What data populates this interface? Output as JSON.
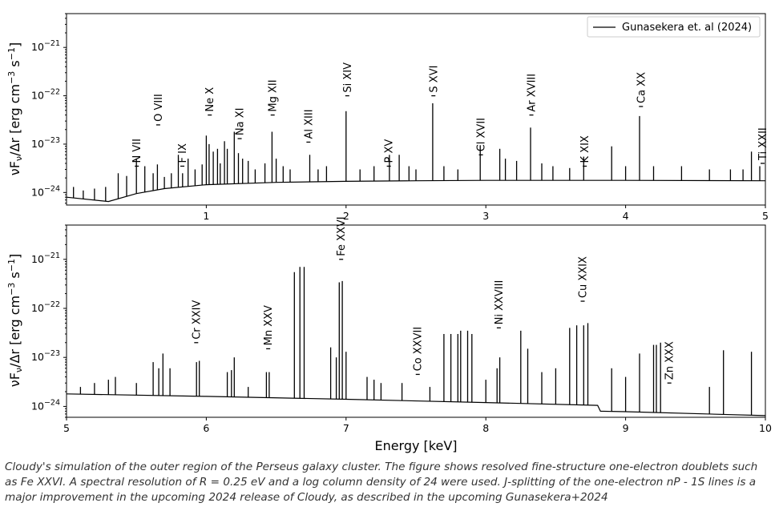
{
  "caption": "Cloudy's simulation of the outer region of the Perseus galaxy cluster. The figure shows resolved fine-structure one-electron doublets such as Fe XXVI. A spectral resolution of R = 0.25 eV and a log column density of 24 were used. J-splitting of the one-electron nP - 1S lines is a major improvement in the upcoming 2024 release of Cloudy, as described in the upcoming Gunasekera+2024",
  "chart_data": [
    {
      "type": "line",
      "panel": "top",
      "xlabel": "",
      "ylabel": "νF_ν/Δr [erg cm^-3 s^-1]",
      "ylabel_main": "νF",
      "ylabel_sub": "ν",
      "ylabel_rest": "/Δr [erg cm",
      "ylabel_exp": "−3",
      "ylabel_s": " s",
      "ylabel_exp2": "−1",
      "ylabel_close": "]",
      "yscale": "log",
      "xlim": [
        0.0,
        5.0
      ],
      "ylim": [
        5.5e-25,
        5e-21
      ],
      "xticks": [
        1,
        2,
        3,
        4,
        5
      ],
      "ytick_exponents": [
        -24,
        -23,
        -22,
        -21
      ],
      "ytick_base": "10",
      "legend": {
        "label": "Gunasekera et. al (2024)",
        "placement": "top-right"
      },
      "continuum": [
        [
          0.0,
          8e-25
        ],
        [
          0.3,
          6.5e-25
        ],
        [
          0.5,
          9.5e-25
        ],
        [
          0.7,
          1.2e-24
        ],
        [
          1.0,
          1.45e-24
        ],
        [
          1.5,
          1.62e-24
        ],
        [
          2.0,
          1.7e-24
        ],
        [
          2.5,
          1.75e-24
        ],
        [
          3.0,
          1.78e-24
        ],
        [
          4.0,
          1.78e-24
        ],
        [
          5.0,
          1.75e-24
        ]
      ],
      "lines": [
        [
          0.05,
          1.3e-24
        ],
        [
          0.12,
          1.1e-24
        ],
        [
          0.2,
          1.2e-24
        ],
        [
          0.28,
          1.3e-24
        ],
        [
          0.37,
          2.5e-24
        ],
        [
          0.43,
          2.2e-24
        ],
        [
          0.5,
          5e-24
        ],
        [
          0.56,
          3.5e-24
        ],
        [
          0.62,
          2.5e-24
        ],
        [
          0.65,
          3.8e-24
        ],
        [
          0.7,
          2.1e-24
        ],
        [
          0.75,
          2.5e-24
        ],
        [
          0.8,
          6e-24
        ],
        [
          0.83,
          2.5e-24
        ],
        [
          0.87,
          5e-24
        ],
        [
          0.92,
          3e-24
        ],
        [
          0.97,
          3.8e-24
        ],
        [
          1.0,
          1.5e-23
        ],
        [
          1.02,
          1e-23
        ],
        [
          1.05,
          7e-24
        ],
        [
          1.08,
          8e-24
        ],
        [
          1.1,
          4e-24
        ],
        [
          1.13,
          1.15e-23
        ],
        [
          1.15,
          8e-24
        ],
        [
          1.2,
          1.8e-23
        ],
        [
          1.23,
          6.5e-24
        ],
        [
          1.26,
          5e-24
        ],
        [
          1.3,
          4.5e-24
        ],
        [
          1.35,
          3e-24
        ],
        [
          1.42,
          4e-24
        ],
        [
          1.47,
          1.8e-23
        ],
        [
          1.5,
          5e-24
        ],
        [
          1.55,
          3.5e-24
        ],
        [
          1.6,
          3e-24
        ],
        [
          1.74,
          6e-24
        ],
        [
          1.8,
          3e-24
        ],
        [
          1.86,
          3.5e-24
        ],
        [
          2.0,
          4.8e-23
        ],
        [
          2.1,
          3e-24
        ],
        [
          2.2,
          3.5e-24
        ],
        [
          2.31,
          6e-24
        ],
        [
          2.38,
          6e-24
        ],
        [
          2.45,
          3.5e-24
        ],
        [
          2.5,
          3e-24
        ],
        [
          2.62,
          7e-23
        ],
        [
          2.7,
          3.5e-24
        ],
        [
          2.8,
          3e-24
        ],
        [
          2.96,
          9.5e-24
        ],
        [
          3.1,
          8e-24
        ],
        [
          3.14,
          5e-24
        ],
        [
          3.22,
          4.5e-24
        ],
        [
          3.32,
          2.2e-23
        ],
        [
          3.4,
          4e-24
        ],
        [
          3.48,
          3.5e-24
        ],
        [
          3.6,
          3.2e-24
        ],
        [
          3.7,
          5.5e-24
        ],
        [
          3.9,
          9e-24
        ],
        [
          4.0,
          3.5e-24
        ],
        [
          4.1,
          3.8e-23
        ],
        [
          4.2,
          3.5e-24
        ],
        [
          4.4,
          3.5e-24
        ],
        [
          4.6,
          3e-24
        ],
        [
          4.75,
          3e-24
        ],
        [
          4.84,
          3e-24
        ],
        [
          4.9,
          7e-24
        ],
        [
          4.96,
          3.5e-24
        ]
      ],
      "ions": [
        {
          "label": "N VII",
          "x": 0.5,
          "y": 3.5e-24
        },
        {
          "label": "O VIII",
          "x": 0.653,
          "y": 2.5e-23
        },
        {
          "label": "F IX",
          "x": 0.826,
          "y": 3.5e-24
        },
        {
          "label": "Ne X",
          "x": 1.022,
          "y": 4e-23
        },
        {
          "label": "Na XI",
          "x": 1.236,
          "y": 1.3e-23
        },
        {
          "label": "Mg XII",
          "x": 1.472,
          "y": 4e-23
        },
        {
          "label": "Al XIII",
          "x": 1.728,
          "y": 1.1e-23
        },
        {
          "label": "Si XIV",
          "x": 2.006,
          "y": 1e-22
        },
        {
          "label": "P XV",
          "x": 2.303,
          "y": 3.5e-24
        },
        {
          "label": "S XVI",
          "x": 2.622,
          "y": 1e-22
        },
        {
          "label": "Cl XVII",
          "x": 2.962,
          "y": 6e-24
        },
        {
          "label": "Ar XVIII",
          "x": 3.323,
          "y": 4e-23
        },
        {
          "label": "K XIX",
          "x": 3.705,
          "y": 3.5e-24
        },
        {
          "label": "Ca XX",
          "x": 4.107,
          "y": 6e-23
        },
        {
          "label": "Ti XXII",
          "x": 4.977,
          "y": 4e-24
        }
      ]
    },
    {
      "type": "line",
      "panel": "bottom",
      "xlabel": "Energy [keV]",
      "yscale": "log",
      "xlim": [
        5.0,
        10.0
      ],
      "ylim": [
        6e-25,
        5e-21
      ],
      "xticks": [
        5,
        6,
        7,
        8,
        9,
        10
      ],
      "ytick_exponents": [
        -24,
        -23,
        -22,
        -21
      ],
      "continuum": [
        [
          5.0,
          1.8e-24
        ],
        [
          6.0,
          1.6e-24
        ],
        [
          7.0,
          1.4e-24
        ],
        [
          8.0,
          1.2e-24
        ],
        [
          8.8,
          1.05e-24
        ],
        [
          8.82,
          8e-25
        ],
        [
          9.0,
          7.8e-25
        ],
        [
          10.0,
          6.5e-25
        ]
      ],
      "lines": [
        [
          5.1,
          2.5e-24
        ],
        [
          5.2,
          3e-24
        ],
        [
          5.3,
          3.5e-24
        ],
        [
          5.35,
          4e-24
        ],
        [
          5.5,
          3e-24
        ],
        [
          5.62,
          8e-24
        ],
        [
          5.66,
          6e-24
        ],
        [
          5.69,
          1.2e-23
        ],
        [
          5.74,
          6e-24
        ],
        [
          5.93,
          8e-24
        ],
        [
          5.95,
          8.5e-24
        ],
        [
          6.15,
          5e-24
        ],
        [
          6.18,
          5.5e-24
        ],
        [
          6.2,
          1e-23
        ],
        [
          6.3,
          2.5e-24
        ],
        [
          6.43,
          5e-24
        ],
        [
          6.45,
          5e-24
        ],
        [
          6.63,
          5.5e-22
        ],
        [
          6.67,
          7e-22
        ],
        [
          6.7,
          7e-22
        ],
        [
          6.89,
          1.6e-23
        ],
        [
          6.93,
          1e-23
        ],
        [
          6.951,
          3.4e-22
        ],
        [
          6.973,
          3.6e-22
        ],
        [
          7.0,
          1.3e-23
        ],
        [
          7.15,
          4e-24
        ],
        [
          7.2,
          3.5e-24
        ],
        [
          7.25,
          3e-24
        ],
        [
          7.4,
          3e-24
        ],
        [
          7.6,
          2.5e-24
        ],
        [
          7.7,
          3e-23
        ],
        [
          7.75,
          3e-23
        ],
        [
          7.8,
          3e-23
        ],
        [
          7.82,
          3.5e-23
        ],
        [
          7.87,
          3.5e-23
        ],
        [
          7.9,
          3e-23
        ],
        [
          8.0,
          3.5e-24
        ],
        [
          8.08,
          6e-24
        ],
        [
          8.1,
          1e-23
        ],
        [
          8.25,
          3.5e-23
        ],
        [
          8.3,
          1.5e-23
        ],
        [
          8.4,
          5e-24
        ],
        [
          8.5,
          6e-24
        ],
        [
          8.6,
          4e-23
        ],
        [
          8.65,
          4.5e-23
        ],
        [
          8.7,
          4.5e-23
        ],
        [
          8.73,
          5e-23
        ],
        [
          8.9,
          6e-24
        ],
        [
          9.0,
          4e-24
        ],
        [
          9.1,
          1.2e-23
        ],
        [
          9.2,
          1.8e-23
        ],
        [
          9.22,
          1.8e-23
        ],
        [
          9.25,
          2e-23
        ],
        [
          9.6,
          2.5e-24
        ],
        [
          9.7,
          1.4e-23
        ],
        [
          9.9,
          1.3e-23
        ]
      ],
      "ions": [
        {
          "label": "Cr XXIV",
          "x": 5.925,
          "y": 2e-23
        },
        {
          "label": "Mn XXV",
          "x": 6.44,
          "y": 1.5e-23
        },
        {
          "label": "Fe XXVI",
          "x": 6.962,
          "y": 1e-21
        },
        {
          "label": "Co XXVII",
          "x": 7.51,
          "y": 4.5e-24
        },
        {
          "label": "Ni XXVIII",
          "x": 8.09,
          "y": 4e-23
        },
        {
          "label": "Cu XXIX",
          "x": 8.69,
          "y": 1.4e-22
        },
        {
          "label": "Zn XXX",
          "x": 9.31,
          "y": 3e-24
        }
      ]
    }
  ]
}
